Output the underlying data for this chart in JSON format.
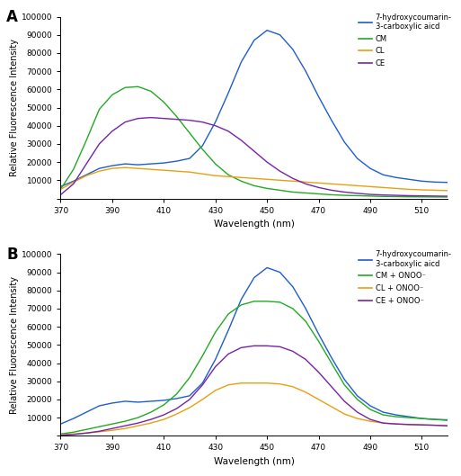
{
  "xlim": [
    370,
    520
  ],
  "ylim": [
    0,
    100000
  ],
  "xlabel": "Wavelength (nm)",
  "ylabel": "Relative Fluorescence Intensity",
  "xticks": [
    370,
    390,
    410,
    430,
    450,
    470,
    490,
    510
  ],
  "yticks": [
    0,
    10000,
    20000,
    30000,
    40000,
    50000,
    60000,
    70000,
    80000,
    90000,
    100000
  ],
  "ytick_labels": [
    "",
    "10000",
    "20000",
    "30000",
    "40000",
    "50000",
    "60000",
    "70000",
    "80000",
    "90000",
    "100000"
  ],
  "panel_A": {
    "label": "A",
    "series": [
      {
        "name": "7-hydroxycoumarin-\n3-carboxylic aicd",
        "color": "#1e5ecc",
        "x": [
          370,
          375,
          380,
          385,
          390,
          395,
          400,
          405,
          410,
          415,
          420,
          425,
          430,
          435,
          440,
          445,
          450,
          455,
          460,
          465,
          470,
          475,
          480,
          485,
          490,
          495,
          500,
          505,
          510,
          515,
          520
        ],
        "y": [
          6500,
          9500,
          13000,
          16500,
          18000,
          19000,
          18500,
          19000,
          19500,
          20500,
          22000,
          29000,
          42000,
          58000,
          75000,
          87000,
          92500,
          90000,
          82000,
          70000,
          56000,
          43000,
          31000,
          22000,
          16500,
          13000,
          11500,
          10500,
          9500,
          9000,
          8800
        ]
      },
      {
        "name": "CM",
        "color": "#22aa22",
        "x": [
          370,
          375,
          380,
          385,
          390,
          395,
          400,
          405,
          410,
          415,
          420,
          425,
          430,
          435,
          440,
          445,
          450,
          455,
          460,
          465,
          470,
          475,
          480,
          485,
          490,
          495,
          500,
          505,
          510,
          515,
          520
        ],
        "y": [
          5000,
          16000,
          32000,
          49000,
          57000,
          61000,
          61500,
          59000,
          53000,
          45000,
          36000,
          27000,
          19000,
          13000,
          9500,
          7000,
          5500,
          4500,
          3500,
          3000,
          2500,
          2000,
          1700,
          1500,
          1300,
          1100,
          1000,
          900,
          850,
          800,
          750
        ]
      },
      {
        "name": "CL",
        "color": "#e8a010",
        "x": [
          370,
          375,
          380,
          385,
          390,
          395,
          400,
          405,
          410,
          415,
          420,
          425,
          430,
          435,
          440,
          445,
          450,
          455,
          460,
          465,
          470,
          475,
          480,
          485,
          490,
          495,
          500,
          505,
          510,
          515,
          520
        ],
        "y": [
          5000,
          9000,
          12500,
          15000,
          16500,
          17000,
          16500,
          16000,
          15500,
          15000,
          14500,
          13500,
          12500,
          12000,
          11500,
          11000,
          10500,
          10000,
          9500,
          9000,
          8500,
          8000,
          7500,
          7000,
          6500,
          6000,
          5500,
          5000,
          4700,
          4500,
          4300
        ]
      },
      {
        "name": "CE",
        "color": "#7722aa",
        "x": [
          370,
          375,
          380,
          385,
          390,
          395,
          400,
          405,
          410,
          415,
          420,
          425,
          430,
          435,
          440,
          445,
          450,
          455,
          460,
          465,
          470,
          475,
          480,
          485,
          490,
          495,
          500,
          505,
          510,
          515,
          520
        ],
        "y": [
          2000,
          8000,
          19000,
          30000,
          37000,
          42000,
          44000,
          44500,
          44000,
          43500,
          43000,
          42000,
          40000,
          37000,
          32000,
          26000,
          20000,
          15000,
          11000,
          8000,
          6000,
          4500,
          3500,
          2800,
          2200,
          1900,
          1700,
          1500,
          1400,
          1300,
          1200
        ]
      }
    ]
  },
  "panel_B": {
    "label": "B",
    "series": [
      {
        "name": "7-hydroxycoumarin-\n3-carboxylic aicd",
        "color": "#1e5ecc",
        "x": [
          370,
          375,
          380,
          385,
          390,
          395,
          400,
          405,
          410,
          415,
          420,
          425,
          430,
          435,
          440,
          445,
          450,
          455,
          460,
          465,
          470,
          475,
          480,
          485,
          490,
          495,
          500,
          505,
          510,
          515,
          520
        ],
        "y": [
          6500,
          9500,
          13000,
          16500,
          18000,
          19000,
          18500,
          19000,
          19500,
          20500,
          22000,
          29000,
          42000,
          58000,
          75000,
          87000,
          92500,
          90000,
          82000,
          70000,
          56000,
          43000,
          31000,
          22000,
          16500,
          13000,
          11500,
          10500,
          9500,
          9000,
          8800
        ]
      },
      {
        "name": "CM + ONOO⁻",
        "color": "#22aa22",
        "x": [
          370,
          375,
          380,
          385,
          390,
          395,
          400,
          405,
          410,
          415,
          420,
          425,
          430,
          435,
          440,
          445,
          450,
          455,
          460,
          465,
          470,
          475,
          480,
          485,
          490,
          495,
          500,
          505,
          510,
          515,
          520
        ],
        "y": [
          1000,
          2000,
          3500,
          5000,
          6500,
          8000,
          10000,
          13000,
          17000,
          23000,
          32000,
          44000,
          57000,
          67000,
          72000,
          74000,
          74000,
          73500,
          70000,
          63000,
          52000,
          40000,
          28000,
          20000,
          14500,
          11500,
          10500,
          10000,
          9500,
          9000,
          8500
        ]
      },
      {
        "name": "CL + ONOO⁻",
        "color": "#e8a010",
        "x": [
          370,
          375,
          380,
          385,
          390,
          395,
          400,
          405,
          410,
          415,
          420,
          425,
          430,
          435,
          440,
          445,
          450,
          455,
          460,
          465,
          470,
          475,
          480,
          485,
          490,
          495,
          500,
          505,
          510,
          515,
          520
        ],
        "y": [
          500,
          1000,
          1500,
          2200,
          3000,
          4000,
          5500,
          7000,
          9000,
          12000,
          15500,
          20000,
          25000,
          28000,
          29000,
          29000,
          29000,
          28500,
          27000,
          24000,
          20000,
          16000,
          12000,
          9500,
          8000,
          7000,
          6500,
          6200,
          6000,
          5800,
          5500
        ]
      },
      {
        "name": "CE + ONOO⁻",
        "color": "#7722aa",
        "x": [
          370,
          375,
          380,
          385,
          390,
          395,
          400,
          405,
          410,
          415,
          420,
          425,
          430,
          435,
          440,
          445,
          450,
          455,
          460,
          465,
          470,
          475,
          480,
          485,
          490,
          495,
          500,
          505,
          510,
          515,
          520
        ],
        "y": [
          300,
          700,
          1500,
          2500,
          4000,
          5500,
          7000,
          9000,
          11500,
          15000,
          20000,
          28000,
          38000,
          45000,
          48500,
          49500,
          49500,
          49000,
          46500,
          42000,
          35000,
          27000,
          19000,
          13000,
          9000,
          7000,
          6500,
          6200,
          6000,
          5800,
          5500
        ]
      }
    ]
  }
}
